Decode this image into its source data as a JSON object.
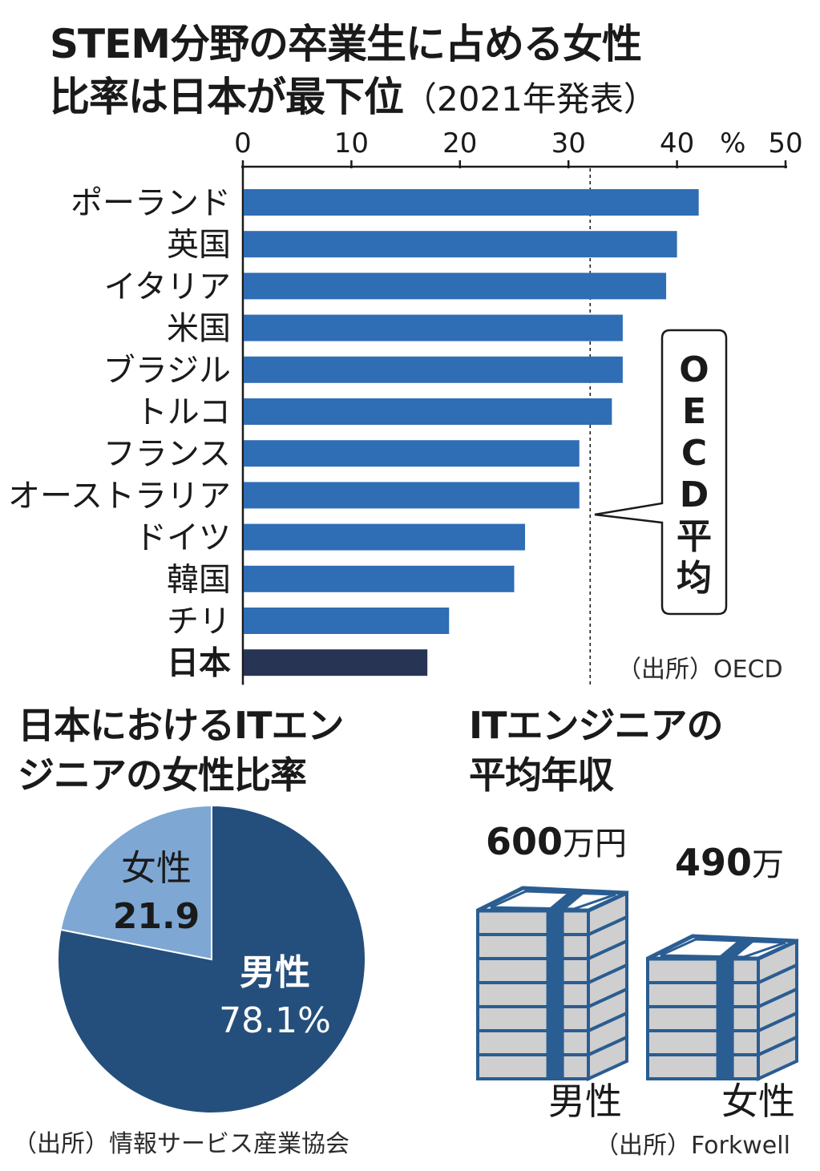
{
  "bar_chart": {
    "title_line1": "STEM分野の卒業生に占める女性",
    "title_line2": "比率は日本が最下位",
    "title_suffix": "（2021年発表）",
    "unit": "%",
    "oecd_label": "OECD平均",
    "source": "（出所）OECD",
    "colors": {
      "bar": "#2f6db5",
      "highlight": "#283454"
    }
  },
  "pie_chart": {
    "title_line1": "日本におけるITエン",
    "title_line2": "ジニアの女性比率",
    "female_label": "女性",
    "female_value": "21.9",
    "male_label": "男性",
    "male_value": "78.1%",
    "source": "（出所）情報サービス産業協会",
    "colors": {
      "male": "#244f7c",
      "female": "#7ea7d3"
    }
  },
  "salary": {
    "title_line1": "ITエンジニアの",
    "title_line2": "平均年収",
    "male_amount": "600",
    "male_unit": "万円",
    "female_amount": "490",
    "female_unit": "万",
    "male_label": "男性",
    "female_label": "女性",
    "source": "（出所）Forkwell",
    "colors": {
      "stroke": "#2a5d92",
      "side": "#cfcfcf"
    }
  },
  "chart_data": [
    {
      "type": "bar",
      "orientation": "horizontal",
      "title": "STEM分野の卒業生に占める女性比率は日本が最下位（2021年発表）",
      "categories": [
        "ポーランド",
        "英国",
        "イタリア",
        "米国",
        "ブラジル",
        "トルコ",
        "フランス",
        "オーストラリア",
        "ドイツ",
        "韓国",
        "チリ",
        "日本"
      ],
      "values": [
        42,
        40,
        39,
        35,
        35,
        34,
        31,
        31,
        26,
        25,
        19,
        17
      ],
      "highlight": "日本",
      "xlim": [
        0,
        50
      ],
      "xticks": [
        0,
        10,
        20,
        30,
        40,
        50
      ],
      "unit": "%",
      "reference_line": {
        "label": "OECD平均",
        "value": 32
      },
      "source": "（出所）OECD"
    },
    {
      "type": "pie",
      "title": "日本におけるITエンジニアの女性比率",
      "slices": [
        {
          "label": "男性",
          "value": 78.1
        },
        {
          "label": "女性",
          "value": 21.9
        }
      ],
      "unit": "%",
      "source": "（出所）情報サービス産業協会"
    },
    {
      "type": "bar",
      "title": "ITエンジニアの平均年収",
      "categories": [
        "男性",
        "女性"
      ],
      "values": [
        600,
        490
      ],
      "unit": "万円",
      "source": "（出所）Forkwell"
    }
  ]
}
